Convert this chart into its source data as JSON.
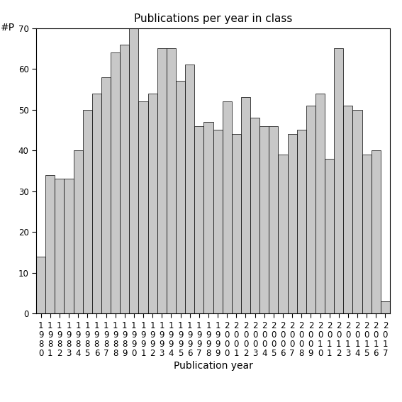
{
  "title": "Publications per year in class",
  "xlabel": "Publication year",
  "ylabel": "#P",
  "years": [
    1980,
    1981,
    1982,
    1983,
    1984,
    1985,
    1986,
    1987,
    1988,
    1989,
    1990,
    1991,
    1992,
    1993,
    1994,
    1995,
    1996,
    1997,
    1998,
    1999,
    2000,
    2001,
    2002,
    2003,
    2004,
    2005,
    2006,
    2007,
    2008,
    2009,
    2010,
    2011,
    2012,
    2013,
    2014,
    2015,
    2016,
    2017
  ],
  "values": [
    14,
    34,
    33,
    33,
    40,
    50,
    54,
    58,
    64,
    66,
    70,
    52,
    54,
    65,
    65,
    57,
    61,
    46,
    47,
    45,
    52,
    44,
    53,
    48,
    46,
    46,
    39,
    44,
    45,
    51,
    54,
    38,
    65,
    51,
    50,
    39,
    40,
    3
  ],
  "bar_color": "#c8c8c8",
  "bar_edge_color": "#000000",
  "ylim": [
    0,
    70
  ],
  "yticks": [
    0,
    10,
    20,
    30,
    40,
    50,
    60,
    70
  ],
  "background_color": "#ffffff",
  "title_fontsize": 11,
  "axis_label_fontsize": 10,
  "tick_fontsize": 8.5
}
